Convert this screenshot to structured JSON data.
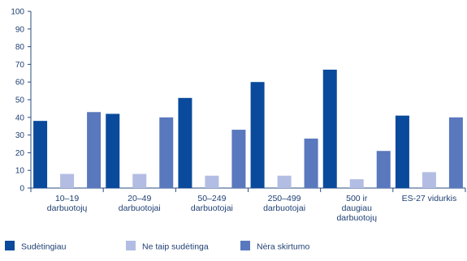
{
  "chart_data": {
    "type": "bar",
    "title": "",
    "xlabel": "",
    "ylabel": "",
    "ylim": [
      0,
      100
    ],
    "yticks": [
      0,
      10,
      20,
      30,
      40,
      50,
      60,
      70,
      80,
      90,
      100
    ],
    "grid": false,
    "legend_position": "bottom",
    "categories": [
      [
        "10–19",
        "darbuotojų"
      ],
      [
        "20–49",
        "darbuotojai"
      ],
      [
        "50–249",
        "darbuotojai"
      ],
      [
        "250–499",
        "darbuotojai"
      ],
      [
        "500 ir",
        "daugiau",
        "darbuotojų"
      ],
      [
        "ES-27 vidurkis"
      ]
    ],
    "series": [
      {
        "name": "Sudėtingiau",
        "color": "#0a4a9c",
        "values": [
          38,
          42,
          51,
          60,
          67,
          41
        ]
      },
      {
        "name": "Ne taip sudėtinga",
        "color": "#b3bde3",
        "values": [
          8,
          8,
          7,
          7,
          5,
          9
        ]
      },
      {
        "name": "Nėra skirtumo",
        "color": "#5a78bd",
        "values": [
          43,
          40,
          33,
          28,
          21,
          40
        ]
      }
    ]
  }
}
